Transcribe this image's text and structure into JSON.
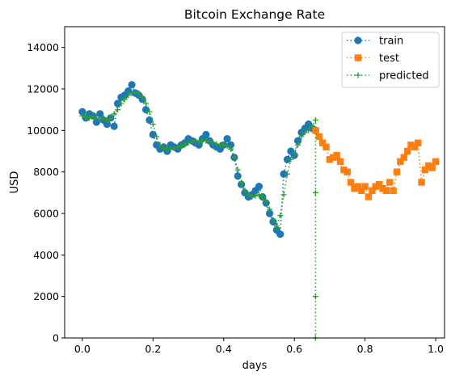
{
  "chart_data": {
    "type": "line",
    "title": "Bitcoin Exchange Rate",
    "xlabel": "days",
    "ylabel": "USD",
    "xlim": [
      -0.05,
      1.025
    ],
    "ylim": [
      0,
      15000
    ],
    "xticks": [
      0.0,
      0.2,
      0.4,
      0.6,
      0.8,
      1.0
    ],
    "xtick_labels": [
      "0.0",
      "0.2",
      "0.4",
      "0.6",
      "0.8",
      "1.0"
    ],
    "yticks": [
      0,
      2000,
      4000,
      6000,
      8000,
      10000,
      12000,
      14000
    ],
    "ytick_labels": [
      "0",
      "2000",
      "4000",
      "6000",
      "8000",
      "10000",
      "12000",
      "14000"
    ],
    "grid": false,
    "legend_position": "top-right",
    "series": [
      {
        "name": "train",
        "color": "#1f77b4",
        "marker": "circle",
        "linestyle": "dotted",
        "x": [
          0.0,
          0.01,
          0.02,
          0.03,
          0.04,
          0.05,
          0.06,
          0.07,
          0.08,
          0.09,
          0.1,
          0.11,
          0.12,
          0.13,
          0.14,
          0.15,
          0.16,
          0.17,
          0.18,
          0.19,
          0.2,
          0.21,
          0.22,
          0.23,
          0.24,
          0.25,
          0.26,
          0.27,
          0.28,
          0.29,
          0.3,
          0.31,
          0.32,
          0.33,
          0.34,
          0.35,
          0.36,
          0.37,
          0.38,
          0.39,
          0.4,
          0.41,
          0.42,
          0.43,
          0.44,
          0.45,
          0.46,
          0.47,
          0.48,
          0.49,
          0.5,
          0.51,
          0.52,
          0.53,
          0.54,
          0.55,
          0.56,
          0.57,
          0.58,
          0.59,
          0.6,
          0.61,
          0.62,
          0.63,
          0.64,
          0.65,
          0.66
        ],
        "y": [
          10900,
          10600,
          10800,
          10700,
          10400,
          10800,
          10500,
          10300,
          10600,
          10200,
          11300,
          11600,
          11700,
          11900,
          12200,
          11800,
          11700,
          11500,
          11000,
          10500,
          9800,
          9300,
          9100,
          9200,
          9000,
          9300,
          9200,
          9100,
          9300,
          9400,
          9600,
          9500,
          9400,
          9300,
          9600,
          9800,
          9500,
          9300,
          9200,
          9100,
          9300,
          9600,
          9300,
          8700,
          7800,
          7400,
          7000,
          6800,
          6900,
          7100,
          7300,
          6800,
          6500,
          6000,
          5600,
          5200,
          5000,
          7900,
          8600,
          9000,
          8800,
          9500,
          9900,
          10100,
          10300,
          10100,
          10000
        ]
      },
      {
        "name": "test",
        "color": "#ff7f0e",
        "marker": "square",
        "linestyle": "dotted",
        "x": [
          0.66,
          0.67,
          0.68,
          0.69,
          0.7,
          0.71,
          0.72,
          0.73,
          0.74,
          0.75,
          0.76,
          0.77,
          0.78,
          0.79,
          0.8,
          0.81,
          0.82,
          0.83,
          0.84,
          0.85,
          0.86,
          0.87,
          0.88,
          0.89,
          0.9,
          0.91,
          0.92,
          0.93,
          0.94,
          0.95,
          0.96,
          0.97,
          0.98,
          0.99,
          1.0
        ],
        "y": [
          10000,
          9700,
          9400,
          9200,
          8600,
          8700,
          8800,
          8500,
          8100,
          8000,
          7500,
          7200,
          7300,
          7100,
          7300,
          6800,
          7100,
          7300,
          7400,
          7200,
          7100,
          7500,
          7100,
          8000,
          8500,
          8700,
          9000,
          9300,
          9200,
          9400,
          7500,
          8100,
          8300,
          8200,
          8500
        ]
      },
      {
        "name": "predicted",
        "color": "#2ca02c",
        "marker": "plus",
        "linestyle": "dotted",
        "x": [
          0.0,
          0.01,
          0.02,
          0.03,
          0.04,
          0.05,
          0.06,
          0.07,
          0.08,
          0.09,
          0.1,
          0.11,
          0.12,
          0.13,
          0.14,
          0.15,
          0.16,
          0.17,
          0.18,
          0.19,
          0.2,
          0.21,
          0.22,
          0.23,
          0.24,
          0.25,
          0.26,
          0.27,
          0.28,
          0.29,
          0.3,
          0.31,
          0.32,
          0.33,
          0.34,
          0.35,
          0.36,
          0.37,
          0.38,
          0.39,
          0.4,
          0.41,
          0.42,
          0.43,
          0.44,
          0.45,
          0.46,
          0.47,
          0.48,
          0.49,
          0.5,
          0.51,
          0.52,
          0.53,
          0.54,
          0.55,
          0.56,
          0.57,
          0.58,
          0.59,
          0.6,
          0.61,
          0.62,
          0.63,
          0.64,
          0.65,
          0.66,
          0.66,
          0.66,
          0.66
        ],
        "y": [
          10700,
          10650,
          10600,
          10650,
          10600,
          10550,
          10600,
          10500,
          10600,
          10800,
          11000,
          11300,
          11500,
          11700,
          11800,
          11850,
          11800,
          11600,
          11300,
          10900,
          10300,
          9700,
          9300,
          9150,
          9100,
          9100,
          9150,
          9200,
          9250,
          9300,
          9400,
          9450,
          9500,
          9450,
          9500,
          9500,
          9450,
          9400,
          9350,
          9300,
          9300,
          9250,
          9100,
          8700,
          8100,
          7500,
          7100,
          6900,
          6800,
          6850,
          6900,
          6800,
          6600,
          6200,
          5700,
          5400,
          5900,
          6900,
          7900,
          8600,
          8900,
          9300,
          9700,
          9900,
          10000,
          10200,
          10500,
          7000,
          2000,
          0
        ]
      }
    ]
  }
}
